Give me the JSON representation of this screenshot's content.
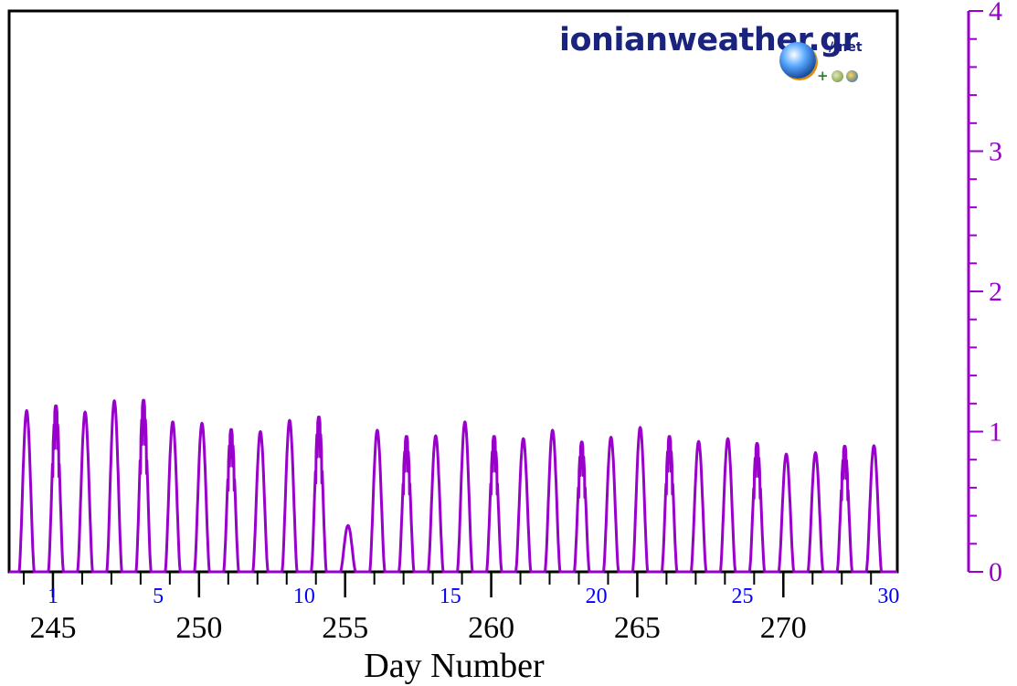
{
  "logo": {
    "main": "ionianweather.gr",
    "suffix": "/.net",
    "extra": "+"
  },
  "chart_data": {
    "type": "line",
    "xlabel": "Day Number",
    "xlim": [
      243.5,
      273.9
    ],
    "ylim": [
      0,
      4
    ],
    "x_ticks": [
      245,
      250,
      255,
      260,
      265,
      270
    ],
    "day_of_month_ticks": [
      {
        "x": 245,
        "label": "1"
      },
      {
        "x": 248.6,
        "label": "5"
      },
      {
        "x": 253.6,
        "label": "10"
      },
      {
        "x": 258.6,
        "label": "15"
      },
      {
        "x": 263.6,
        "label": "20"
      },
      {
        "x": 268.6,
        "label": "25"
      },
      {
        "x": 273.6,
        "label": "30"
      }
    ],
    "y_ticks_right": [
      0,
      1,
      2,
      3,
      4
    ],
    "series": [
      {
        "color": "#9900cc",
        "daily_peaks": [
          {
            "day": 244.1,
            "peak": 1.15
          },
          {
            "day": 245.1,
            "peak": 1.19
          },
          {
            "day": 246.1,
            "peak": 1.14
          },
          {
            "day": 247.1,
            "peak": 1.22
          },
          {
            "day": 248.1,
            "peak": 1.23
          },
          {
            "day": 249.1,
            "peak": 1.07
          },
          {
            "day": 250.1,
            "peak": 1.06
          },
          {
            "day": 251.1,
            "peak": 1.02
          },
          {
            "day": 252.1,
            "peak": 1.0
          },
          {
            "day": 253.1,
            "peak": 1.08
          },
          {
            "day": 254.1,
            "peak": 1.11
          },
          {
            "day": 255.1,
            "peak": 0.33
          },
          {
            "day": 256.1,
            "peak": 1.01
          },
          {
            "day": 257.1,
            "peak": 0.97
          },
          {
            "day": 258.1,
            "peak": 0.97
          },
          {
            "day": 259.1,
            "peak": 1.07
          },
          {
            "day": 260.1,
            "peak": 0.97
          },
          {
            "day": 261.1,
            "peak": 0.95
          },
          {
            "day": 262.1,
            "peak": 1.01
          },
          {
            "day": 263.1,
            "peak": 0.93
          },
          {
            "day": 264.1,
            "peak": 0.96
          },
          {
            "day": 265.1,
            "peak": 1.03
          },
          {
            "day": 266.1,
            "peak": 0.97
          },
          {
            "day": 267.1,
            "peak": 0.93
          },
          {
            "day": 268.1,
            "peak": 0.95
          },
          {
            "day": 269.1,
            "peak": 0.92
          },
          {
            "day": 270.1,
            "peak": 0.84
          },
          {
            "day": 271.1,
            "peak": 0.85
          },
          {
            "day": 272.1,
            "peak": 0.9
          },
          {
            "day": 273.1,
            "peak": 0.9
          }
        ]
      }
    ],
    "colors": {
      "axis": "#000000",
      "series": "#9900cc",
      "right_axis": "#9900cc",
      "day_ticks": "#0000ff"
    },
    "grid": false
  }
}
